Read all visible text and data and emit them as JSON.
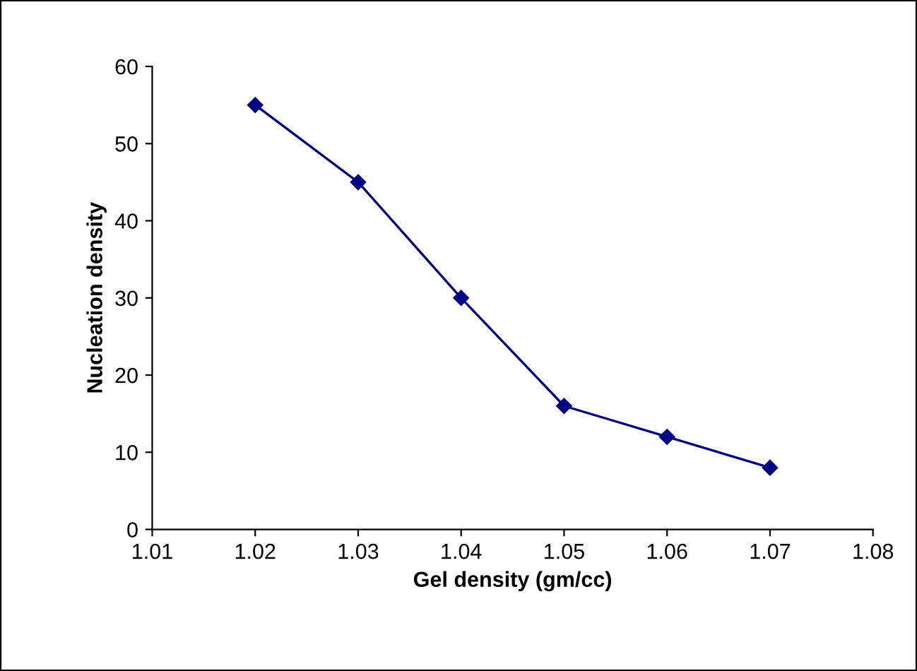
{
  "chart_data": {
    "type": "line",
    "xlabel": "Gel density (gm/cc)",
    "ylabel": "Nucleation density",
    "x": [
      1.02,
      1.03,
      1.04,
      1.05,
      1.06,
      1.07
    ],
    "series": [
      {
        "color": "#000080",
        "values": [
          55,
          45,
          30,
          16,
          12,
          8
        ]
      }
    ],
    "xlim": [
      1.01,
      1.08
    ],
    "xticks": [
      {
        "value": 1.01,
        "label": "1.01"
      },
      {
        "value": 1.02,
        "label": "1.02"
      },
      {
        "value": 1.03,
        "label": "1.03"
      },
      {
        "value": 1.04,
        "label": "1.04"
      },
      {
        "value": 1.05,
        "label": "1.05"
      },
      {
        "value": 1.06,
        "label": "1.06"
      },
      {
        "value": 1.07,
        "label": "1.07"
      },
      {
        "value": 1.08,
        "label": "1.08"
      }
    ],
    "ylim": [
      0,
      60
    ],
    "yticks": [
      0,
      10,
      20,
      30,
      40,
      50,
      60
    ],
    "marker": "diamond",
    "line_style": "solid",
    "grid": false,
    "legend": false
  }
}
